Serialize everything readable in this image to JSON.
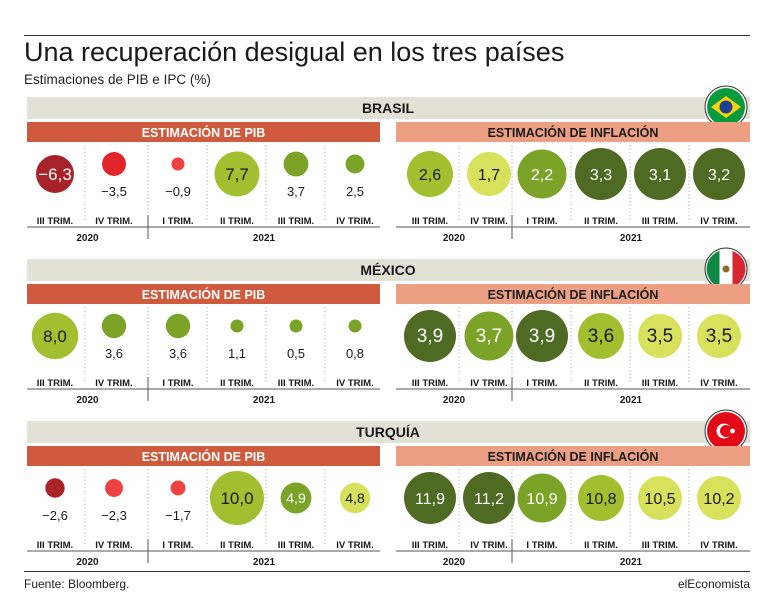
{
  "header": {
    "title": "Una recuperación desigual en los tres países",
    "subtitle": "Estimaciones de PIB e IPC (%)"
  },
  "footer": {
    "source": "Fuente: Bloomberg.",
    "brand": "elEconomista"
  },
  "colors": {
    "header_band": "#e2e1d6",
    "pib_band": "#cf5a3d",
    "inflation_band": "#ec9f82",
    "neg_dark": "#a8222a",
    "neg_mid": "#e1242a",
    "neg_light": "#eb4242",
    "pos_dark": "#4f6a23",
    "pos_mid": "#7aa327",
    "pos_light": "#a2bf2f",
    "pos_pale": "#d7e15c"
  },
  "chart_data": {
    "type": "bubble-table",
    "pib_label": "ESTIMACIÓN DE PIB",
    "inflation_label": "ESTIMACIÓN DE INFLACIÓN",
    "quarters": [
      "III TRIM.",
      "IV TRIM.",
      "I TRIM.",
      "II TRIM.",
      "III TRIM.",
      "IV TRIM."
    ],
    "year_groups": [
      {
        "year": "2020",
        "span": 2
      },
      {
        "year": "2021",
        "span": 4
      }
    ],
    "countries": [
      {
        "name": "BRASIL",
        "flag": "brazil-flag-icon",
        "pib": [
          "−6,3",
          "−3,5",
          "−0,9",
          "7,7",
          "3,7",
          "2,5"
        ],
        "pib_values": [
          -6.3,
          -3.5,
          -0.9,
          7.7,
          3.7,
          2.5
        ],
        "inflation": [
          "2,6",
          "1,7",
          "2,2",
          "3,3",
          "3,1",
          "3,2"
        ],
        "inflation_values": [
          2.6,
          1.7,
          2.2,
          3.3,
          3.1,
          3.2
        ]
      },
      {
        "name": "MÉXICO",
        "flag": "mexico-flag-icon",
        "pib": [
          "8,0",
          "3,6",
          "3,6",
          "1,1",
          "0,5",
          "0,8"
        ],
        "pib_values": [
          8.0,
          3.6,
          3.6,
          1.1,
          0.5,
          0.8
        ],
        "inflation": [
          "3,9",
          "3,7",
          "3,9",
          "3,6",
          "3,5",
          "3,5"
        ],
        "inflation_values": [
          3.9,
          3.7,
          3.9,
          3.6,
          3.5,
          3.5
        ]
      },
      {
        "name": "TURQUÍA",
        "flag": "turkey-flag-icon",
        "pib": [
          "−2,6",
          "−2,3",
          "−1,7",
          "10,0",
          "4,9",
          "4,8"
        ],
        "pib_values": [
          -2.6,
          -2.3,
          -1.7,
          10.0,
          4.9,
          4.8
        ],
        "inflation": [
          "11,9",
          "11,2",
          "10,9",
          "10,8",
          "10,5",
          "10,2"
        ],
        "inflation_values": [
          11.9,
          11.2,
          10.9,
          10.8,
          10.5,
          10.2
        ]
      }
    ]
  }
}
